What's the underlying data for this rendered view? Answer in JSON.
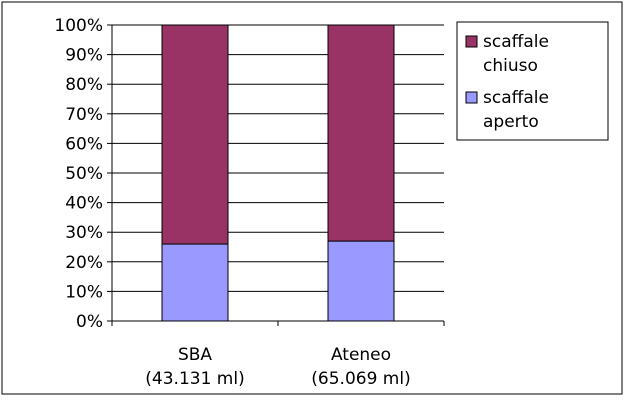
{
  "chart_data": {
    "type": "bar",
    "stacked": "percent",
    "categories": [
      "SBA\n(43.131 ml)",
      "Ateneo\n(65.069 ml)"
    ],
    "series": [
      {
        "name": "scaffale aperto",
        "values": [
          26,
          27
        ],
        "color": "#9999ff"
      },
      {
        "name": "scaffale chiuso",
        "values": [
          74,
          73
        ],
        "color": "#993366"
      }
    ],
    "y_ticks": [
      "0%",
      "10%",
      "20%",
      "30%",
      "40%",
      "50%",
      "60%",
      "70%",
      "80%",
      "90%",
      "100%"
    ],
    "ylim": [
      0,
      100
    ],
    "grid": true,
    "legend_position": "top-right",
    "legend_order": [
      "scaffale chiuso",
      "scaffale aperto"
    ],
    "legend_labels": {
      "scaffale chiuso": [
        "scaffale",
        "chiuso"
      ],
      "scaffale aperto": [
        "scaffale",
        "aperto"
      ]
    },
    "category_lines": [
      [
        "SBA",
        "(43.131 ml)"
      ],
      [
        "Ateneo",
        "(65.069 ml)"
      ]
    ]
  }
}
